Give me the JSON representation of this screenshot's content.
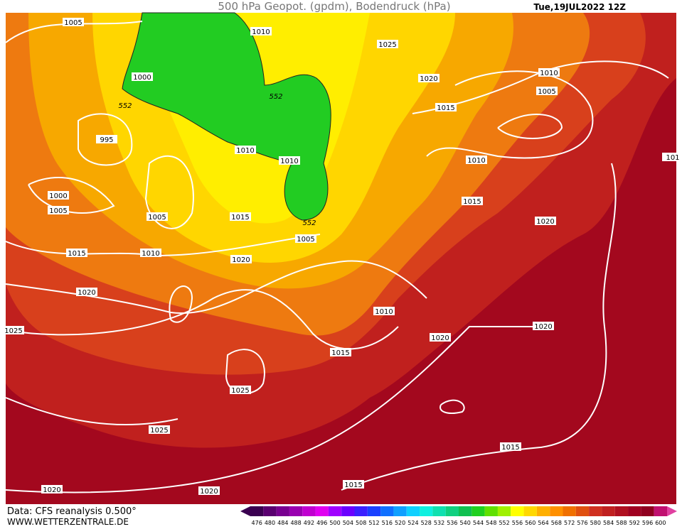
{
  "header": {
    "title": "500 hPa Geopot. (gpdm), Bodendruck (hPa)",
    "date": "Tue,19JUL2022 12Z"
  },
  "footer": {
    "source": "Data: CFS reanalysis 0.500°",
    "website": "WWW.WETTERZENTRALE.DE"
  },
  "legend": {
    "ticks": [
      476,
      480,
      484,
      488,
      492,
      496,
      500,
      504,
      508,
      512,
      516,
      520,
      524,
      528,
      532,
      536,
      540,
      544,
      548,
      552,
      556,
      560,
      564,
      568,
      572,
      576,
      580,
      584,
      588,
      592,
      596,
      600
    ]
  },
  "map": {
    "isobar_labels": [
      "1005",
      "1010",
      "1025",
      "1000",
      "552",
      "552",
      "1020",
      "1010",
      "1005",
      "1015",
      "995",
      "1010",
      "1010",
      "1010",
      "1000",
      "1005",
      "1015",
      "1005",
      "1015",
      "552",
      "1020",
      "1005",
      "1015",
      "1010",
      "1020",
      "1020",
      "1010",
      "1020",
      "1025",
      "1020",
      "1015",
      "1025",
      "1025",
      "1015",
      "1015",
      "1020",
      "1020",
      "101"
    ]
  }
}
